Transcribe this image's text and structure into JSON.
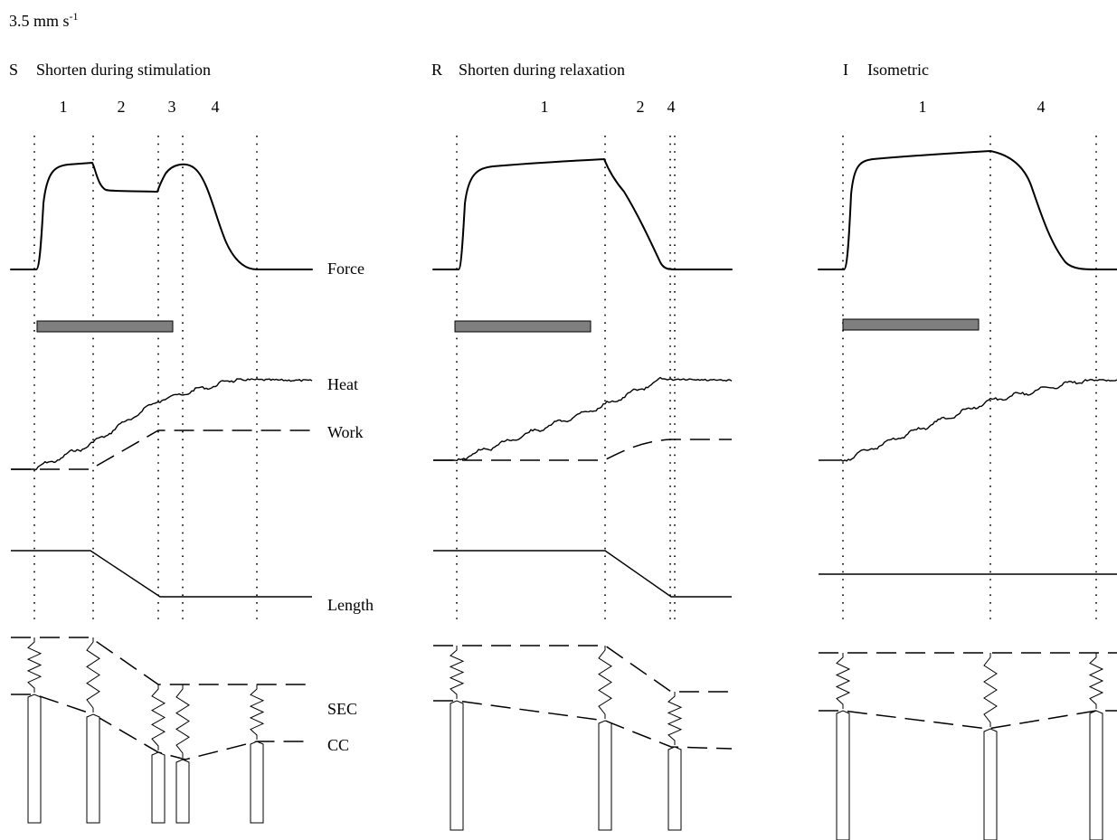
{
  "speed": {
    "value": "3.5 mm s",
    "exponent": "-1"
  },
  "panels": [
    {
      "letter": "S",
      "title": "Shorten during stimulation",
      "phases": [
        "1",
        "2",
        "3",
        "4"
      ]
    },
    {
      "letter": "R",
      "title": "Shorten during relaxation",
      "phases": [
        "1",
        "2",
        "4"
      ]
    },
    {
      "letter": "I",
      "title": "Isometric",
      "phases": [
        "1",
        "4"
      ]
    }
  ],
  "trace_labels": {
    "force": "Force",
    "heat": "Heat",
    "work": "Work",
    "length": "Length",
    "sec": "SEC",
    "cc": "CC"
  }
}
